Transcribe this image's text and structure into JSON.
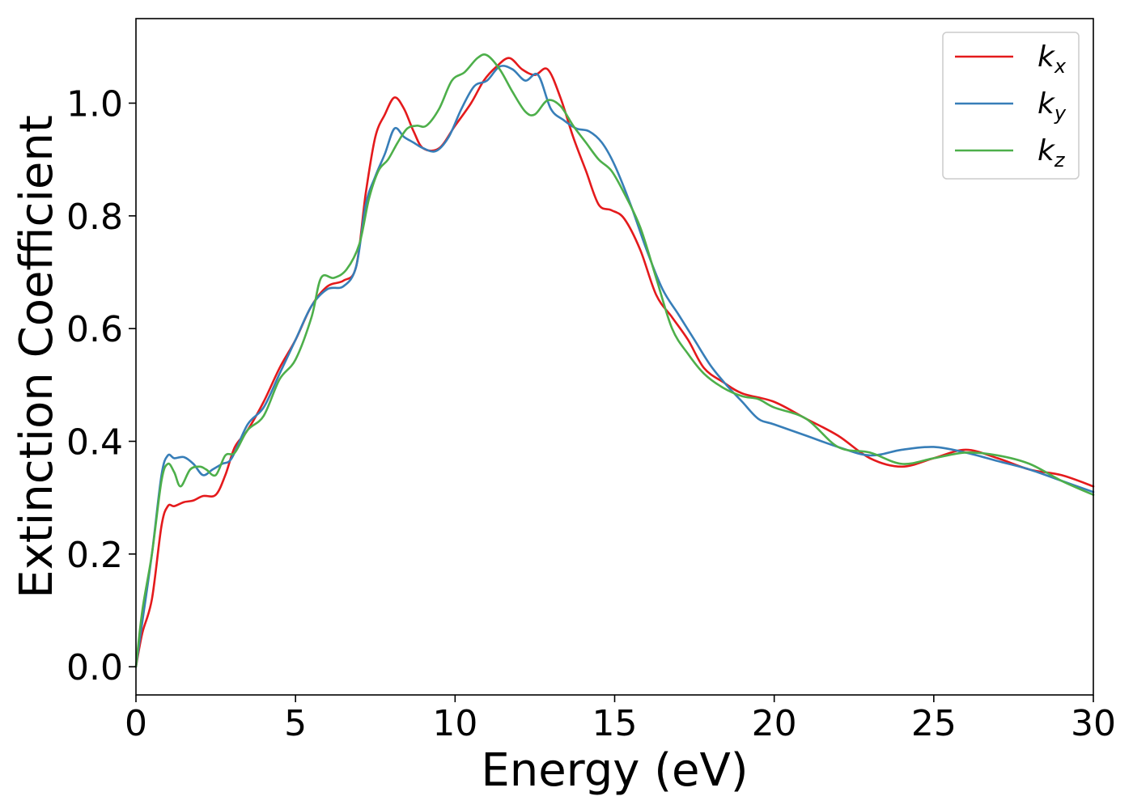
{
  "chart_data": {
    "type": "line",
    "title": "",
    "xlabel": "Energy (eV)",
    "ylabel": "Extinction Coefficient",
    "xlim": [
      0,
      30
    ],
    "ylim": [
      -0.05,
      1.15
    ],
    "xticks": [
      0,
      5,
      10,
      15,
      20,
      25,
      30
    ],
    "yticks": [
      0.0,
      0.2,
      0.4,
      0.6,
      0.8,
      1.0
    ],
    "xtick_labels": [
      "0",
      "5",
      "10",
      "15",
      "20",
      "25",
      "30"
    ],
    "ytick_labels": [
      "0.0",
      "0.2",
      "0.4",
      "0.6",
      "0.8",
      "1.0"
    ],
    "grid": false,
    "legend_position": "top-right",
    "series": [
      {
        "name": "k_x",
        "label_main": "k",
        "label_sub": "x",
        "color": "#e41a1c",
        "x": [
          0,
          0.2,
          0.5,
          0.8,
          1.0,
          1.2,
          1.5,
          1.8,
          2.1,
          2.5,
          2.8,
          3.1,
          3.5,
          4.0,
          4.5,
          5.0,
          5.5,
          6.0,
          6.5,
          6.9,
          7.2,
          7.5,
          7.8,
          8.1,
          8.4,
          8.7,
          9.0,
          9.5,
          10.0,
          10.5,
          10.9,
          11.3,
          11.7,
          12.1,
          12.5,
          12.9,
          13.3,
          13.7,
          14.1,
          14.5,
          14.9,
          15.3,
          15.8,
          16.3,
          16.8,
          17.3,
          17.8,
          18.4,
          19.0,
          20.0,
          21.0,
          22.0,
          23.0,
          24.0,
          25.0,
          26.0,
          27.0,
          28.0,
          29.0,
          30.0
        ],
        "y": [
          0.0,
          0.06,
          0.12,
          0.25,
          0.285,
          0.285,
          0.292,
          0.295,
          0.303,
          0.305,
          0.34,
          0.39,
          0.42,
          0.47,
          0.53,
          0.58,
          0.64,
          0.675,
          0.685,
          0.71,
          0.84,
          0.94,
          0.98,
          1.01,
          0.99,
          0.95,
          0.92,
          0.92,
          0.96,
          1.0,
          1.04,
          1.065,
          1.08,
          1.06,
          1.05,
          1.06,
          1.01,
          0.94,
          0.88,
          0.82,
          0.81,
          0.795,
          0.74,
          0.66,
          0.62,
          0.58,
          0.53,
          0.505,
          0.485,
          0.47,
          0.44,
          0.41,
          0.37,
          0.355,
          0.37,
          0.385,
          0.37,
          0.35,
          0.34,
          0.32
        ]
      },
      {
        "name": "k_y",
        "label_main": "k",
        "label_sub": "y",
        "color": "#377eb8",
        "x": [
          0,
          0.2,
          0.5,
          0.8,
          1.0,
          1.2,
          1.5,
          1.8,
          2.1,
          2.4,
          2.7,
          3.0,
          3.5,
          4.0,
          4.5,
          5.0,
          5.5,
          6.0,
          6.5,
          6.9,
          7.2,
          7.5,
          7.8,
          8.1,
          8.4,
          8.7,
          9.0,
          9.4,
          9.8,
          10.2,
          10.6,
          11.0,
          11.4,
          11.8,
          12.2,
          12.6,
          13.0,
          13.4,
          13.8,
          14.2,
          14.6,
          15.0,
          15.5,
          16.0,
          16.5,
          17.0,
          17.5,
          18.0,
          18.5,
          19.0,
          19.5,
          20.0,
          21.0,
          22.0,
          23.0,
          24.0,
          25.0,
          26.0,
          27.0,
          28.0,
          29.0,
          30.0
        ],
        "y": [
          0.0,
          0.08,
          0.2,
          0.34,
          0.375,
          0.37,
          0.372,
          0.36,
          0.34,
          0.35,
          0.36,
          0.37,
          0.43,
          0.46,
          0.52,
          0.58,
          0.64,
          0.67,
          0.675,
          0.71,
          0.82,
          0.87,
          0.91,
          0.955,
          0.94,
          0.93,
          0.92,
          0.915,
          0.94,
          0.99,
          1.03,
          1.04,
          1.065,
          1.06,
          1.04,
          1.05,
          0.99,
          0.97,
          0.955,
          0.95,
          0.93,
          0.89,
          0.82,
          0.74,
          0.67,
          0.625,
          0.58,
          0.535,
          0.5,
          0.47,
          0.44,
          0.43,
          0.41,
          0.39,
          0.375,
          0.385,
          0.39,
          0.38,
          0.365,
          0.35,
          0.33,
          0.31
        ]
      },
      {
        "name": "k_z",
        "label_main": "k",
        "label_sub": "z",
        "color": "#4daf4a",
        "x": [
          0,
          0.2,
          0.5,
          0.8,
          1.0,
          1.2,
          1.4,
          1.7,
          2.0,
          2.2,
          2.5,
          2.8,
          3.1,
          3.5,
          4.0,
          4.5,
          5.0,
          5.5,
          5.8,
          6.2,
          6.6,
          7.0,
          7.3,
          7.6,
          7.9,
          8.2,
          8.5,
          8.8,
          9.1,
          9.5,
          9.9,
          10.3,
          10.7,
          11.0,
          11.4,
          11.8,
          12.2,
          12.5,
          12.9,
          13.3,
          13.7,
          14.1,
          14.5,
          14.9,
          15.3,
          15.8,
          16.3,
          16.8,
          17.3,
          17.8,
          18.4,
          19.0,
          19.5,
          20.0,
          21.0,
          22.0,
          23.0,
          24.0,
          25.0,
          26.0,
          27.0,
          28.0,
          29.0,
          30.0
        ],
        "y": [
          0.0,
          0.1,
          0.2,
          0.33,
          0.36,
          0.345,
          0.32,
          0.35,
          0.355,
          0.35,
          0.34,
          0.375,
          0.38,
          0.42,
          0.445,
          0.51,
          0.545,
          0.62,
          0.69,
          0.69,
          0.705,
          0.75,
          0.83,
          0.88,
          0.9,
          0.93,
          0.955,
          0.96,
          0.96,
          0.99,
          1.04,
          1.055,
          1.08,
          1.085,
          1.06,
          1.02,
          0.985,
          0.98,
          1.005,
          0.995,
          0.96,
          0.93,
          0.9,
          0.88,
          0.84,
          0.78,
          0.69,
          0.6,
          0.555,
          0.52,
          0.495,
          0.48,
          0.475,
          0.46,
          0.44,
          0.39,
          0.38,
          0.36,
          0.37,
          0.38,
          0.375,
          0.36,
          0.33,
          0.305
        ]
      }
    ]
  }
}
